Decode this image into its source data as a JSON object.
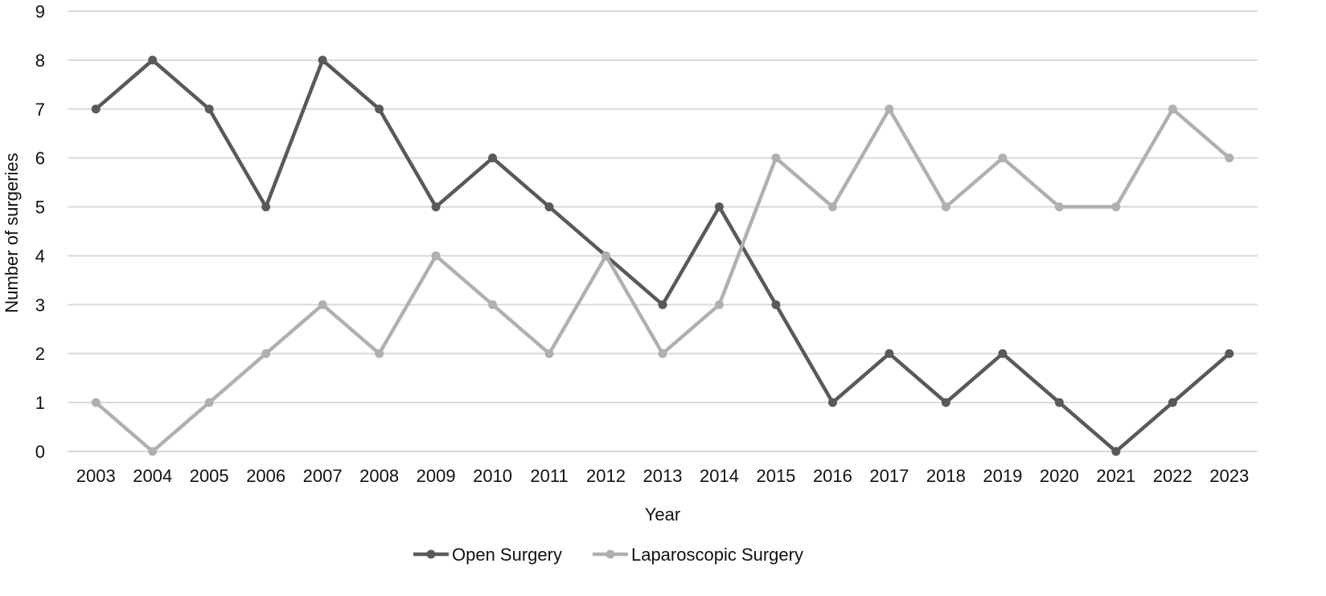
{
  "chart_data": {
    "type": "line",
    "title": "",
    "xlabel": "Year",
    "ylabel": "Number of surgeries",
    "ylim": [
      0,
      9
    ],
    "yticks": [
      "0",
      "1",
      "2",
      "3",
      "4",
      "5",
      "6",
      "7",
      "8",
      "9"
    ],
    "grid": true,
    "legend_position": "bottom",
    "categories": [
      "2003",
      "2004",
      "2005",
      "2006",
      "2007",
      "2008",
      "2009",
      "2010",
      "2011",
      "2012",
      "2013",
      "2014",
      "2015",
      "2016",
      "2017",
      "2018",
      "2019",
      "2020",
      "2021",
      "2022",
      "2023"
    ],
    "series": [
      {
        "name": "Open Surgery",
        "color": "#595959",
        "values": [
          7,
          8,
          7,
          5,
          8,
          7,
          5,
          6,
          5,
          4,
          3,
          5,
          3,
          1,
          2,
          1,
          2,
          1,
          0,
          1,
          2
        ]
      },
      {
        "name": "Laparoscopic Surgery",
        "color": "#b0b0b0",
        "values": [
          1,
          0,
          1,
          2,
          3,
          2,
          4,
          3,
          2,
          4,
          2,
          3,
          6,
          5,
          7,
          5,
          6,
          5,
          5,
          7,
          6
        ]
      }
    ]
  }
}
